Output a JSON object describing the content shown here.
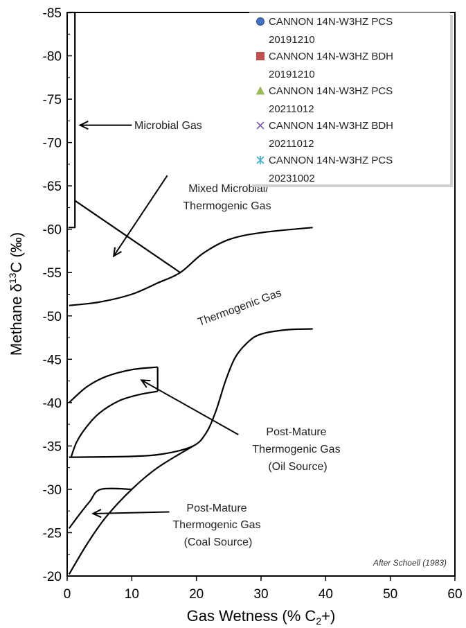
{
  "chart_data": {
    "type": "scatter",
    "xlabel": "Gas Wetness (% C",
    "xlabel_sub": "2",
    "xlabel_tail": "+)",
    "ylabel_prefix": "Methane  δ",
    "ylabel_sup": "13",
    "ylabel_tail": "C (‰)",
    "xlim": [
      0,
      60
    ],
    "ylim": [
      -20,
      -85
    ],
    "x_ticks": [
      "0",
      "10",
      "20",
      "30",
      "40",
      "50",
      "60"
    ],
    "y_ticks": [
      "-85",
      "-80",
      "-75",
      "-70",
      "-65",
      "-60",
      "-55",
      "-50",
      "-45",
      "-40",
      "-35",
      "-30",
      "-25",
      "-20"
    ],
    "grid": false,
    "legend_position": "top-right",
    "series": [
      {
        "name": "CANNON 14N-W3HZ PCS 20191210",
        "marker": "circle",
        "color": "#4472c4",
        "points": []
      },
      {
        "name": "CANNON 14N-W3HZ BDH 20191210",
        "marker": "square",
        "color": "#c0504d",
        "points": []
      },
      {
        "name": "CANNON 14N-W3HZ PCS 20211012",
        "marker": "triangle",
        "color": "#9bbb59",
        "points": []
      },
      {
        "name": "CANNON 14N-W3HZ BDH 20211012",
        "marker": "x",
        "color": "#8064a2",
        "points": []
      },
      {
        "name": "CANNON 14N-W3HZ PCS 20231002",
        "marker": "star",
        "color": "#4bacc6",
        "points": []
      }
    ],
    "legend_lines": [
      [
        "CANNON 14N-W3HZ PCS",
        "20191210"
      ],
      [
        "CANNON 14N-W3HZ BDH",
        "20191210"
      ],
      [
        "CANNON 14N-W3HZ PCS",
        "20211012"
      ],
      [
        "CANNON 14N-W3HZ BDH",
        "20211012"
      ],
      [
        "CANNON 14N-W3HZ PCS",
        "20231002"
      ]
    ],
    "regions": [
      {
        "lines": [
          "Microbial Gas"
        ]
      },
      {
        "lines": [
          "Mixed Microbial/",
          "Thermogenic Gas"
        ]
      },
      {
        "lines": [
          "Thermogenic Gas"
        ]
      },
      {
        "lines": [
          "Post-Mature",
          "Thermogenic Gas",
          "(Oil Source)"
        ]
      },
      {
        "lines": [
          "Post-Mature",
          "Thermogenic Gas",
          "(Coal Source)"
        ]
      }
    ],
    "boundary_curves": [
      {
        "name": "microbial-box",
        "points": [
          [
            0.2,
            -85
          ],
          [
            1.2,
            -85
          ],
          [
            1.2,
            -60.2
          ],
          [
            0.2,
            -60.2
          ]
        ]
      },
      {
        "name": "mixed-divider",
        "points": [
          [
            1.2,
            -63.3
          ],
          [
            17.5,
            -55.0
          ]
        ]
      },
      {
        "name": "thermogenic-upper",
        "points": [
          [
            0.3,
            -51.2
          ],
          [
            5,
            -51.6
          ],
          [
            10,
            -52.5
          ],
          [
            14,
            -53.8
          ],
          [
            17.5,
            -55.0
          ],
          [
            21,
            -57.2
          ],
          [
            25,
            -58.8
          ],
          [
            30,
            -59.6
          ],
          [
            38,
            -60.2
          ]
        ]
      },
      {
        "name": "thermogenic-lower",
        "points": [
          [
            0.3,
            -33.7
          ],
          [
            10,
            -33.8
          ],
          [
            15,
            -34.1
          ],
          [
            19.5,
            -35.0
          ],
          [
            21.5,
            -36.5
          ],
          [
            23,
            -39.0
          ],
          [
            24.5,
            -42.5
          ],
          [
            26,
            -45.2
          ],
          [
            28,
            -47.0
          ],
          [
            30,
            -47.9
          ],
          [
            34,
            -48.4
          ],
          [
            38,
            -48.5
          ]
        ]
      },
      {
        "name": "oil-upper",
        "points": [
          [
            0.3,
            -40.0
          ],
          [
            3,
            -41.8
          ],
          [
            6,
            -43.0
          ],
          [
            10,
            -43.8
          ],
          [
            14,
            -44.1
          ]
        ]
      },
      {
        "name": "oil-box-right",
        "points": [
          [
            14,
            -44.1
          ],
          [
            14,
            -41.3
          ]
        ]
      },
      {
        "name": "oil-lower",
        "points": [
          [
            0.6,
            -33.7
          ],
          [
            1.5,
            -35.5
          ],
          [
            3,
            -37.2
          ],
          [
            5,
            -38.8
          ],
          [
            8,
            -40.2
          ],
          [
            11,
            -40.9
          ],
          [
            14,
            -41.3
          ]
        ]
      },
      {
        "name": "coal-upper",
        "points": [
          [
            0.3,
            -25.5
          ],
          [
            2,
            -27.2
          ],
          [
            3.5,
            -28.6
          ],
          [
            5.2,
            -30.0
          ],
          [
            10,
            -30.0
          ]
        ]
      },
      {
        "name": "coal-lower",
        "points": [
          [
            0.3,
            -20.2
          ],
          [
            3,
            -23.6
          ],
          [
            6,
            -26.8
          ],
          [
            10,
            -30.0
          ],
          [
            14,
            -32.5
          ],
          [
            19.5,
            -35.0
          ]
        ]
      }
    ],
    "arrows": [
      {
        "from": [
          10,
          -72
        ],
        "to": [
          2,
          -72
        ]
      },
      {
        "from": [
          15.5,
          -66.2
        ],
        "to": [
          7.2,
          -56.9
        ]
      },
      {
        "from": [
          26.5,
          -36.3
        ],
        "to": [
          11.5,
          -42.6
        ]
      },
      {
        "from": [
          15.8,
          -27.4
        ],
        "to": [
          4,
          -27.2
        ]
      }
    ],
    "attribution": "After Schoell (1983)"
  }
}
